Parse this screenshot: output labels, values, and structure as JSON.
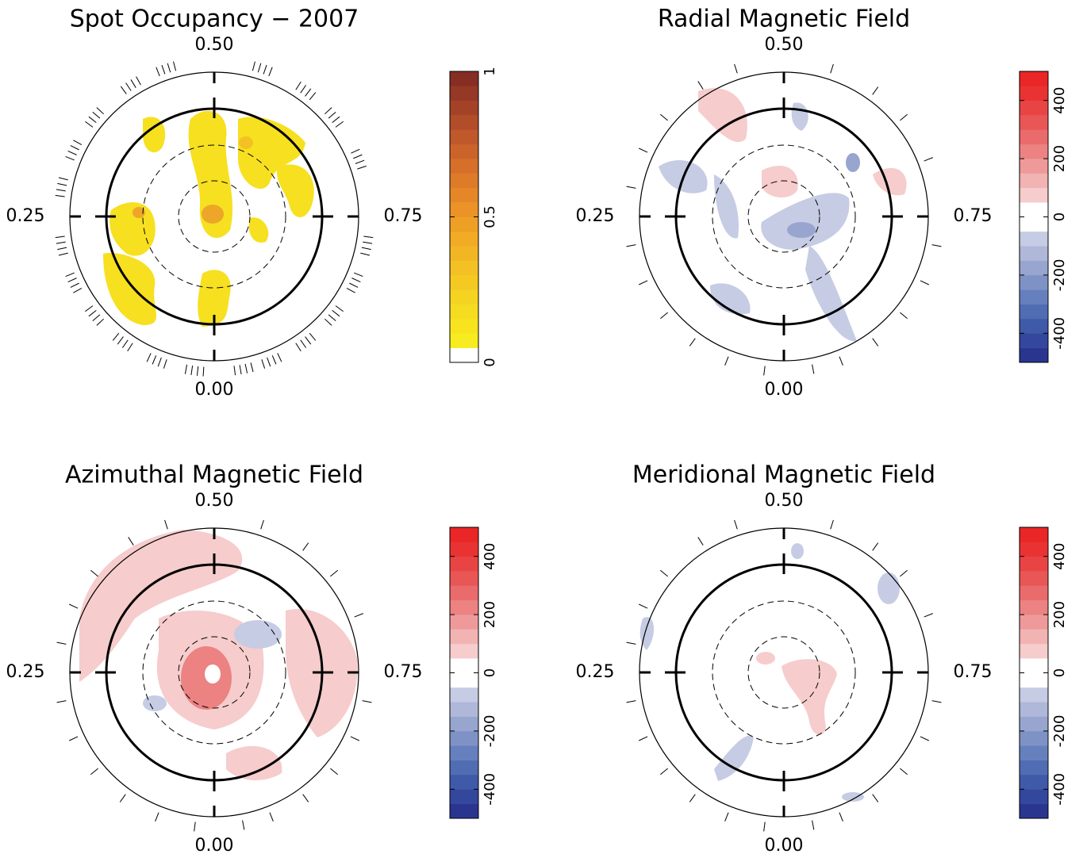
{
  "chart_data": [
    {
      "type": "polar-map",
      "title": "Spot Occupancy − 2007",
      "phase_labels": [
        "0.00",
        "0.25",
        "0.50",
        "0.75"
      ],
      "observation_phases": [
        0.02,
        0.06,
        0.1,
        0.14,
        0.18,
        0.22,
        0.28,
        0.32,
        0.36,
        0.41,
        0.45,
        0.55,
        0.6,
        0.64,
        0.69,
        0.78,
        0.82,
        0.86,
        0.9,
        0.94,
        0.97
      ],
      "tick_group": true,
      "clim": [
        0,
        1
      ],
      "cticks": [
        0,
        0.5,
        1
      ],
      "colors": [
        "#ffffff",
        "#f7ec1f",
        "#f7e41f",
        "#f6dc20",
        "#f5d321",
        "#f4ca22",
        "#f3c123",
        "#f2b624",
        "#f1ab25",
        "#ee9f26",
        "#eb9327",
        "#e58728",
        "#de7b29",
        "#d56f2a",
        "#cb632a",
        "#bf582a",
        "#b24d29",
        "#a44228",
        "#953826",
        "#862e23"
      ]
    },
    {
      "type": "polar-map",
      "title": "Radial Magnetic Field",
      "phase_labels": [
        "0.00",
        "0.25",
        "0.50",
        "0.75"
      ],
      "observation_phases": [
        0.02,
        0.06,
        0.1,
        0.14,
        0.18,
        0.22,
        0.28,
        0.32,
        0.36,
        0.41,
        0.45,
        0.55,
        0.6,
        0.64,
        0.69,
        0.78,
        0.82,
        0.86,
        0.9,
        0.94,
        0.97
      ],
      "tick_group": false,
      "clim": [
        -500,
        500
      ],
      "cticks": [
        -400,
        -200,
        0,
        200,
        400
      ],
      "colors": [
        "#2a3590",
        "#33479d",
        "#3f5aa8",
        "#506db3",
        "#6680bd",
        "#7f92c6",
        "#97a5cf",
        "#afb8d9",
        "#c6cce3",
        "#ffffff",
        "#ffffff",
        "#f6cccc",
        "#f2b3b3",
        "#ef9a9a",
        "#ec8282",
        "#ea6b6b",
        "#e95656",
        "#e94444",
        "#e93333",
        "#ea2626"
      ]
    },
    {
      "type": "polar-map",
      "title": "Azimuthal Magnetic Field",
      "phase_labels": [
        "0.00",
        "0.25",
        "0.50",
        "0.75"
      ],
      "observation_phases": [
        0.02,
        0.06,
        0.1,
        0.14,
        0.18,
        0.22,
        0.28,
        0.32,
        0.36,
        0.41,
        0.45,
        0.55,
        0.6,
        0.64,
        0.69,
        0.78,
        0.82,
        0.86,
        0.9,
        0.94,
        0.97
      ],
      "tick_group": false,
      "clim": [
        -500,
        500
      ],
      "cticks": [
        -400,
        -200,
        0,
        200,
        400
      ],
      "colors": [
        "#2a3590",
        "#33479d",
        "#3f5aa8",
        "#506db3",
        "#6680bd",
        "#7f92c6",
        "#97a5cf",
        "#afb8d9",
        "#c6cce3",
        "#ffffff",
        "#ffffff",
        "#f6cccc",
        "#f2b3b3",
        "#ef9a9a",
        "#ec8282",
        "#ea6b6b",
        "#e95656",
        "#e94444",
        "#e93333",
        "#ea2626"
      ]
    },
    {
      "type": "polar-map",
      "title": "Meridional Magnetic Field",
      "phase_labels": [
        "0.00",
        "0.25",
        "0.50",
        "0.75"
      ],
      "observation_phases": [
        0.02,
        0.06,
        0.1,
        0.14,
        0.18,
        0.22,
        0.28,
        0.32,
        0.36,
        0.41,
        0.45,
        0.55,
        0.6,
        0.64,
        0.69,
        0.78,
        0.82,
        0.86,
        0.9,
        0.94,
        0.97
      ],
      "tick_group": false,
      "clim": [
        -500,
        500
      ],
      "cticks": [
        -400,
        -200,
        0,
        200,
        400
      ],
      "colors": [
        "#2a3590",
        "#33479d",
        "#3f5aa8",
        "#506db3",
        "#6680bd",
        "#7f92c6",
        "#97a5cf",
        "#afb8d9",
        "#c6cce3",
        "#ffffff",
        "#ffffff",
        "#f6cccc",
        "#f2b3b3",
        "#ef9a9a",
        "#ec8282",
        "#ea6b6b",
        "#e95656",
        "#e94444",
        "#e93333",
        "#ea2626"
      ]
    }
  ]
}
